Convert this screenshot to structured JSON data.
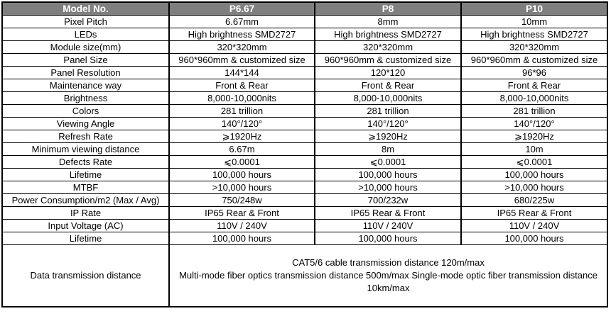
{
  "colors": {
    "header_bg": "#7f7f7f",
    "header_text": "#ffffff",
    "border": "#000000",
    "text": "#000000",
    "row_bg": "#ffffff"
  },
  "table": {
    "header": {
      "label": "Model No.",
      "columns": [
        "P6.67",
        "P8",
        "P10"
      ]
    },
    "rows": [
      {
        "label": "Pixel Pitch",
        "values": [
          "6.67mm",
          "8mm",
          "10mm"
        ]
      },
      {
        "label": "LEDs",
        "values": [
          "High brightness SMD2727",
          "High brightness SMD2727",
          "High brightness SMD2727"
        ]
      },
      {
        "label": "Module size(mm)",
        "values": [
          "320*320mm",
          "320*320mm",
          "320*320mm"
        ]
      },
      {
        "label": "Panel Size",
        "values": [
          "960*960mm & customized size",
          "960*960mm & customized size",
          "960*960mm & customized size"
        ]
      },
      {
        "label": "Panel Resolution",
        "values": [
          "144*144",
          "120*120",
          "96*96"
        ]
      },
      {
        "label": "Maintenance way",
        "values": [
          "Front & Rear",
          "Front & Rear",
          "Front & Rear"
        ]
      },
      {
        "label": "Brightness",
        "values": [
          "8,000-10,000nits",
          "8,000-10,000nits",
          "8,000-10,000nits"
        ]
      },
      {
        "label": "Colors",
        "values": [
          "281 trillion",
          "281 trillion",
          "281 trillion"
        ]
      },
      {
        "label": "Viewing Angle",
        "values": [
          "140°/120°",
          "140°/120°",
          "140°/120°"
        ]
      },
      {
        "label": "Refresh Rate",
        "values": [
          "⩾1920Hz",
          "⩾1920Hz",
          "⩾1920Hz"
        ]
      },
      {
        "label": "Minimum viewing distance",
        "values": [
          "6.67m",
          "8m",
          "10m"
        ]
      },
      {
        "label": "Defects Rate",
        "values": [
          "⩽0.0001",
          "⩽0.0001",
          "⩽0.0001"
        ]
      },
      {
        "label": "Lifetime",
        "values": [
          "100,000 hours",
          "100,000 hours",
          "100,000 hours"
        ]
      },
      {
        "label": "MTBF",
        "values": [
          ">10,000 hours",
          ">10,000 hours",
          ">10,000 hours"
        ]
      },
      {
        "label": "Power Consumption/m2 (Max / Avg)",
        "values": [
          "750/248w",
          "700/232w",
          "680/225w"
        ]
      },
      {
        "label": "IP Rate",
        "values": [
          "IP65 Rear & Front",
          "IP65 Rear & Front",
          "IP65 Rear & Front"
        ]
      },
      {
        "label": "Input Voltage (AC)",
        "values": [
          "110V / 240V",
          "110V / 240V",
          "110V / 240V"
        ]
      },
      {
        "label": "Lifetime",
        "values": [
          "100,000 hours",
          "100,000 hours",
          "100,000 hours"
        ]
      }
    ],
    "footer": {
      "label": "Data transmission distance",
      "lines": [
        "CAT5/6 cable transmission distance 120m/max",
        "Multi-mode fiber optics transmission distance 500m/max Single-mode optic fiber transmission distance 10km/max"
      ]
    }
  }
}
